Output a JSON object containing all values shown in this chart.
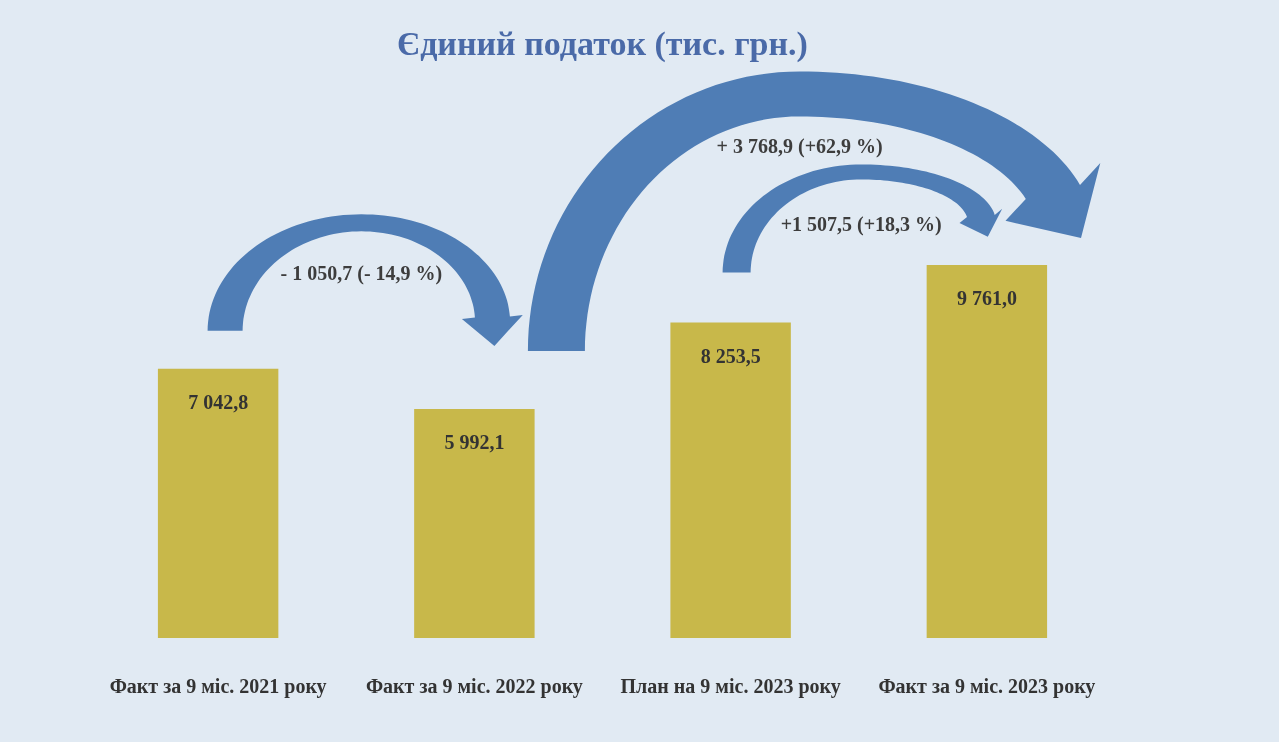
{
  "chart_data": {
    "type": "bar",
    "title": "Єдиний податок (тис. грн.)",
    "categories": [
      "Факт за 9 міс. 2021 року",
      "Факт за 9 міс. 2022 року",
      "План на 9 міс. 2023 року",
      "Факт за 9 міс. 2023 року"
    ],
    "values": [
      7042.8,
      5992.1,
      8253.5,
      9761.0
    ],
    "value_labels": [
      "7 042,8",
      "5 992,1",
      "8 253,5",
      "9 761,0"
    ],
    "color": "#c8b84a",
    "annotations": [
      "- 1 050,7 (- 14,9 %)",
      "+ 3 768,9 (+62,9 %)",
      "+1 507,5 (+18,3 %)"
    ]
  }
}
